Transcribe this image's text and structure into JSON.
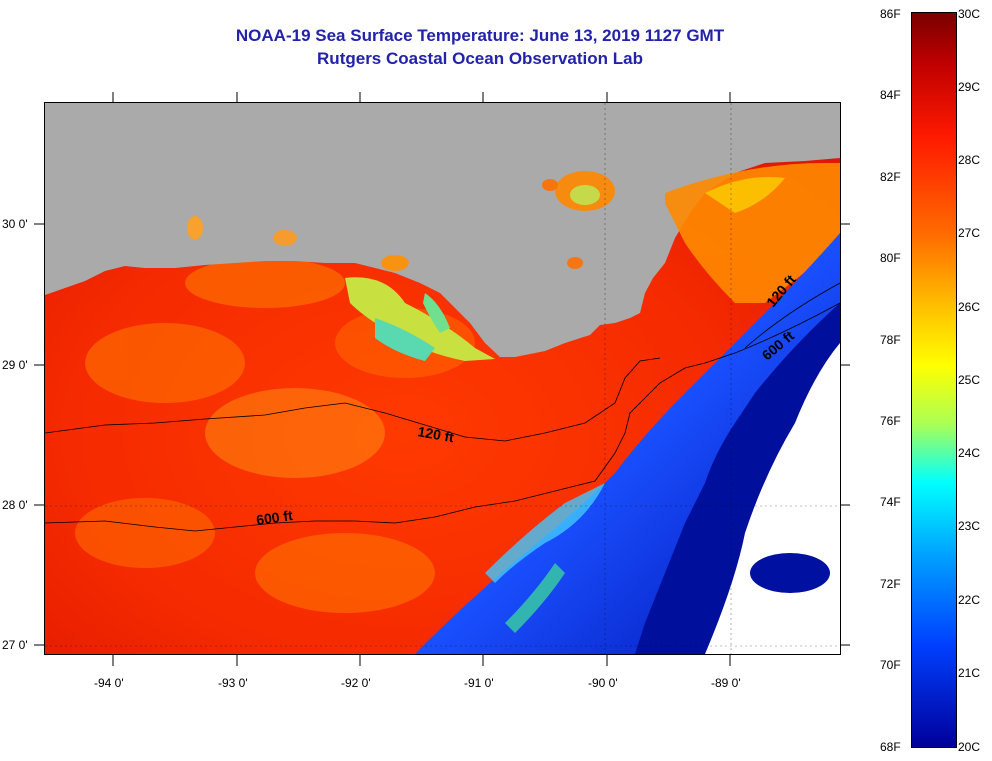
{
  "title": "NOAA-19 Sea Surface Temperature:  June 13, 2019 1127 GMT",
  "subtitle": "Rutgers Coastal Ocean Observation Lab",
  "lat_labels": [
    "30 0'",
    "29 0'",
    "28 0'",
    "27 0'"
  ],
  "lon_labels": [
    "-94 0'",
    "-93 0'",
    "-92 0'",
    "-91 0'",
    "-90 0'",
    "-89 0'"
  ],
  "contour_labels": [
    "120 ft",
    "600 ft",
    "120 ft",
    "600 ft"
  ],
  "colorbar": {
    "fahrenheit": [
      "86F",
      "84F",
      "82F",
      "80F",
      "78F",
      "76F",
      "74F",
      "72F",
      "70F",
      "68F"
    ],
    "celsius": [
      "30C",
      "29C",
      "28C",
      "27C",
      "26C",
      "25C",
      "24C",
      "23C",
      "22C",
      "21C",
      "20C"
    ]
  },
  "colors": {
    "title": "#2222aa",
    "land": "#aaaaaa",
    "no_data": "#ffffff"
  }
}
